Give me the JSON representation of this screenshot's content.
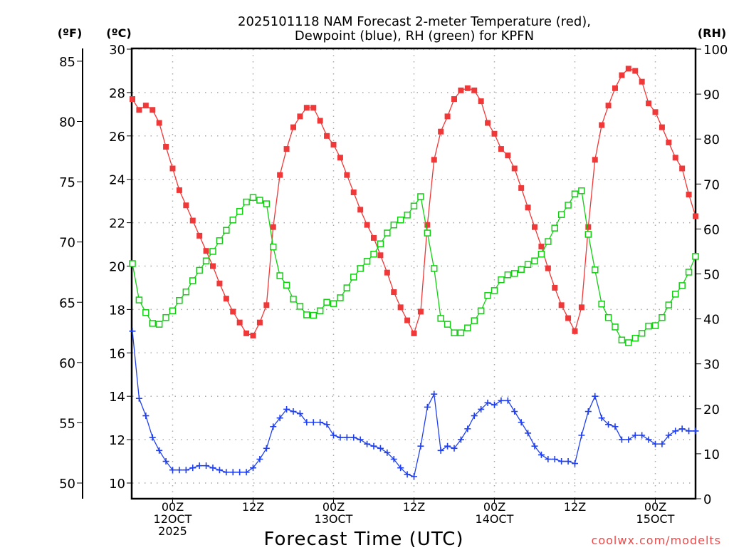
{
  "chart_data": {
    "type": "line",
    "title_line1": "2025101118 NAM Forecast 2-meter Temperature (red),",
    "title_line2": "Dewpoint (blue), RH (green) for KPFN",
    "xlabel": "Forecast Time (UTC)",
    "left_unit_f": "(ºF)",
    "left_unit_c": "(ºC)",
    "right_unit": "(RH)",
    "credit": "coolwx.com/modelts",
    "x_start_hour_utc": "2025-10-11 18Z",
    "x_step_hours": 1,
    "x_range_hours": [
      0,
      84
    ],
    "ylim_c": [
      10,
      30
    ],
    "ylim_rh": [
      0,
      100
    ],
    "grid": true,
    "c_ticks": [
      "10",
      "12",
      "14",
      "16",
      "18",
      "20",
      "22",
      "24",
      "26",
      "28",
      "30"
    ],
    "f_ticks": [
      "50",
      "55",
      "60",
      "65",
      "70",
      "75",
      "80",
      "85"
    ],
    "rh_ticks": [
      "0",
      "10",
      "20",
      "30",
      "40",
      "50",
      "60",
      "70",
      "80",
      "90",
      "100"
    ],
    "x_ticks": [
      {
        "hour": 6,
        "line1": "00Z",
        "line2": "12OCT",
        "line3": "2025"
      },
      {
        "hour": 18,
        "line1": "12Z",
        "line2": "",
        "line3": ""
      },
      {
        "hour": 30,
        "line1": "00Z",
        "line2": "13OCT",
        "line3": ""
      },
      {
        "hour": 42,
        "line1": "12Z",
        "line2": "",
        "line3": ""
      },
      {
        "hour": 54,
        "line1": "00Z",
        "line2": "14OCT",
        "line3": ""
      },
      {
        "hour": 66,
        "line1": "12Z",
        "line2": "",
        "line3": ""
      },
      {
        "hour": 78,
        "line1": "00Z",
        "line2": "15OCT",
        "line3": ""
      }
    ],
    "series": [
      {
        "name": "Temperature",
        "units": "C",
        "color": "#f03838",
        "marker": "filled-square",
        "values": [
          27.7,
          27.2,
          27.4,
          27.2,
          26.6,
          25.5,
          24.5,
          23.5,
          22.8,
          22.1,
          21.4,
          20.7,
          20.0,
          19.2,
          18.5,
          17.9,
          17.4,
          16.9,
          16.8,
          17.4,
          18.2,
          21.8,
          24.2,
          25.4,
          26.4,
          26.9,
          27.3,
          27.3,
          26.7,
          26.0,
          25.6,
          25.0,
          24.2,
          23.4,
          22.6,
          21.9,
          21.3,
          20.5,
          19.7,
          18.8,
          18.1,
          17.5,
          16.9,
          17.9,
          21.9,
          24.9,
          26.2,
          26.9,
          27.7,
          28.1,
          28.2,
          28.1,
          27.6,
          26.6,
          26.1,
          25.4,
          25.1,
          24.5,
          23.6,
          22.7,
          21.8,
          20.9,
          19.9,
          19.0,
          18.2,
          17.6,
          17.0,
          18.1,
          21.8,
          24.9,
          26.5,
          27.4,
          28.2,
          28.8,
          29.1,
          29.0,
          28.5,
          27.5,
          27.1,
          26.4,
          25.7,
          25.0,
          24.5,
          23.3,
          22.3
        ]
      },
      {
        "name": "Dewpoint",
        "units": "C",
        "color": "#2040f0",
        "marker": "plus",
        "values": [
          17.0,
          13.9,
          13.1,
          12.1,
          11.5,
          11.0,
          10.6,
          10.6,
          10.6,
          10.7,
          10.8,
          10.8,
          10.7,
          10.6,
          10.5,
          10.5,
          10.5,
          10.5,
          10.7,
          11.1,
          11.6,
          12.6,
          13.0,
          13.4,
          13.3,
          13.2,
          12.8,
          12.8,
          12.8,
          12.7,
          12.2,
          12.1,
          12.1,
          12.1,
          12.0,
          11.8,
          11.7,
          11.6,
          11.4,
          11.1,
          10.7,
          10.4,
          10.3,
          11.7,
          13.5,
          14.1,
          11.5,
          11.7,
          11.6,
          12.0,
          12.5,
          13.1,
          13.4,
          13.7,
          13.6,
          13.8,
          13.8,
          13.3,
          12.8,
          12.3,
          11.7,
          11.3,
          11.1,
          11.1,
          11.0,
          11.0,
          10.9,
          12.2,
          13.3,
          14.0,
          13.0,
          12.7,
          12.6,
          12.0,
          12.0,
          12.2,
          12.2,
          12.0,
          11.8,
          11.8,
          12.2,
          12.4,
          12.5,
          12.4,
          12.4
        ]
      },
      {
        "name": "RH",
        "units": "%",
        "color": "#10d010",
        "marker": "open-square",
        "values": [
          52.3,
          44.2,
          41.4,
          39.0,
          38.8,
          40.3,
          41.8,
          44.1,
          46.0,
          48.5,
          50.8,
          52.9,
          55.0,
          57.4,
          59.7,
          62.0,
          63.9,
          66.0,
          67.0,
          66.4,
          65.6,
          56.0,
          49.6,
          47.5,
          44.4,
          42.8,
          40.9,
          40.8,
          41.8,
          43.7,
          43.4,
          44.7,
          46.9,
          49.3,
          51.2,
          52.8,
          54.4,
          56.7,
          59.1,
          60.9,
          62.0,
          63.1,
          65.1,
          67.2,
          59.1,
          51.2,
          40.1,
          38.8,
          36.9,
          36.9,
          38.0,
          39.6,
          41.8,
          45.2,
          46.3,
          48.7,
          49.8,
          50.1,
          51.0,
          52.1,
          52.9,
          54.4,
          57.2,
          60.2,
          63.2,
          65.3,
          67.8,
          68.5,
          58.8,
          50.9,
          43.3,
          40.3,
          38.2,
          35.3,
          34.7,
          35.7,
          36.8,
          38.4,
          38.5,
          40.3,
          43.1,
          45.5,
          47.4,
          50.4,
          53.9
        ]
      }
    ]
  }
}
